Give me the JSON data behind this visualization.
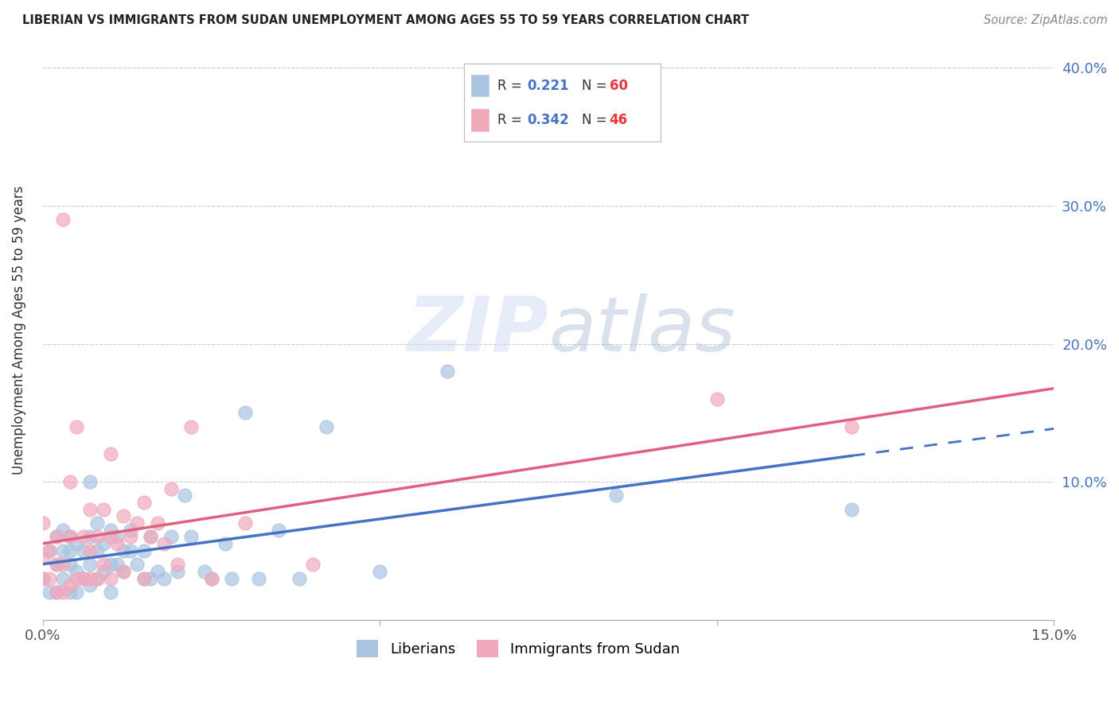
{
  "title": "LIBERIAN VS IMMIGRANTS FROM SUDAN UNEMPLOYMENT AMONG AGES 55 TO 59 YEARS CORRELATION CHART",
  "source": "Source: ZipAtlas.com",
  "ylabel": "Unemployment Among Ages 55 to 59 years",
  "xlim": [
    0.0,
    0.15
  ],
  "ylim": [
    0.0,
    0.42
  ],
  "liberian_color": "#a8c4e0",
  "sudan_color": "#f2a8bb",
  "liberian_line_color": "#4472c4",
  "sudan_line_color": "#e06080",
  "R_liberian": 0.221,
  "N_liberian": 60,
  "R_sudan": 0.342,
  "N_sudan": 46,
  "watermark": "ZIPatlas",
  "liberian_x": [
    0.0,
    0.001,
    0.001,
    0.002,
    0.002,
    0.002,
    0.003,
    0.003,
    0.003,
    0.004,
    0.004,
    0.004,
    0.004,
    0.005,
    0.005,
    0.005,
    0.006,
    0.006,
    0.007,
    0.007,
    0.007,
    0.007,
    0.008,
    0.008,
    0.008,
    0.009,
    0.009,
    0.01,
    0.01,
    0.01,
    0.011,
    0.011,
    0.012,
    0.012,
    0.013,
    0.013,
    0.014,
    0.015,
    0.015,
    0.016,
    0.016,
    0.017,
    0.018,
    0.019,
    0.02,
    0.021,
    0.022,
    0.024,
    0.025,
    0.027,
    0.028,
    0.03,
    0.032,
    0.035,
    0.038,
    0.042,
    0.05,
    0.06,
    0.085,
    0.12
  ],
  "liberian_y": [
    0.03,
    0.02,
    0.05,
    0.02,
    0.04,
    0.06,
    0.03,
    0.05,
    0.065,
    0.02,
    0.04,
    0.05,
    0.06,
    0.02,
    0.035,
    0.055,
    0.03,
    0.05,
    0.025,
    0.04,
    0.06,
    0.1,
    0.03,
    0.05,
    0.07,
    0.035,
    0.055,
    0.02,
    0.04,
    0.065,
    0.04,
    0.06,
    0.035,
    0.05,
    0.05,
    0.065,
    0.04,
    0.03,
    0.05,
    0.03,
    0.06,
    0.035,
    0.03,
    0.06,
    0.035,
    0.09,
    0.06,
    0.035,
    0.03,
    0.055,
    0.03,
    0.15,
    0.03,
    0.065,
    0.03,
    0.14,
    0.035,
    0.18,
    0.09,
    0.08
  ],
  "sudan_x": [
    0.0,
    0.0,
    0.0,
    0.001,
    0.001,
    0.002,
    0.002,
    0.002,
    0.003,
    0.003,
    0.003,
    0.004,
    0.004,
    0.004,
    0.005,
    0.005,
    0.006,
    0.006,
    0.007,
    0.007,
    0.007,
    0.008,
    0.008,
    0.009,
    0.009,
    0.01,
    0.01,
    0.01,
    0.011,
    0.012,
    0.012,
    0.013,
    0.014,
    0.015,
    0.015,
    0.016,
    0.017,
    0.018,
    0.019,
    0.02,
    0.022,
    0.025,
    0.03,
    0.04,
    0.1,
    0.12
  ],
  "sudan_y": [
    0.03,
    0.045,
    0.07,
    0.03,
    0.05,
    0.02,
    0.04,
    0.06,
    0.02,
    0.04,
    0.29,
    0.025,
    0.06,
    0.1,
    0.03,
    0.14,
    0.03,
    0.06,
    0.03,
    0.05,
    0.08,
    0.03,
    0.06,
    0.04,
    0.08,
    0.03,
    0.06,
    0.12,
    0.055,
    0.035,
    0.075,
    0.06,
    0.07,
    0.03,
    0.085,
    0.06,
    0.07,
    0.055,
    0.095,
    0.04,
    0.14,
    0.03,
    0.07,
    0.04,
    0.16,
    0.14
  ]
}
